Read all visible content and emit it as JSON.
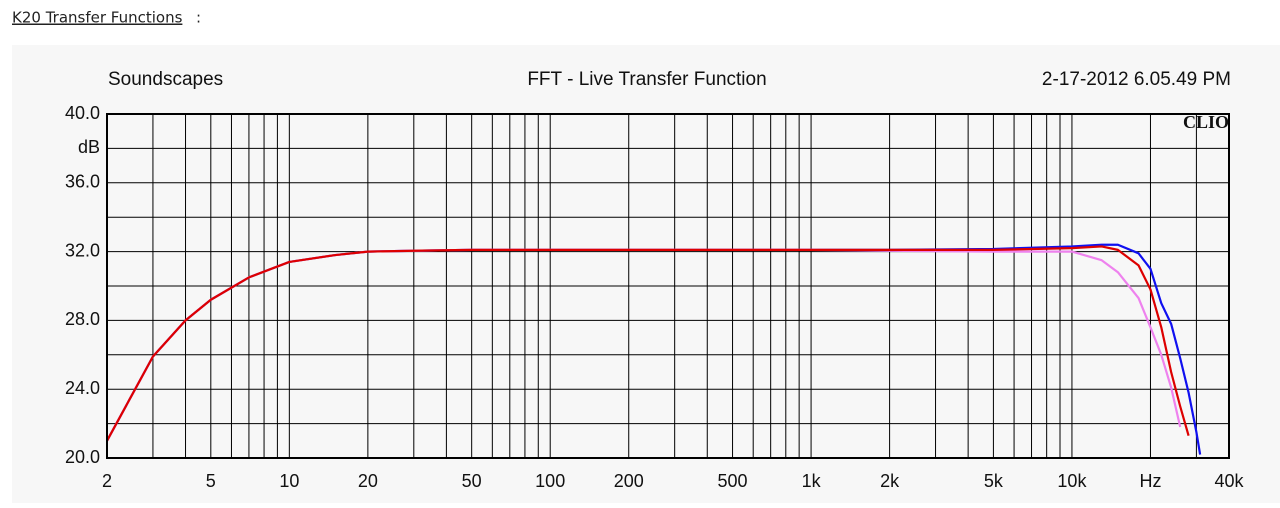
{
  "link": {
    "text": "K20 Transfer Functions",
    "suffix": ":"
  },
  "chart_data": {
    "type": "line",
    "title": "FFT - Live Transfer Function",
    "left_header": "Soundscapes",
    "right_header": "2-17-2012 6.05.49 PM",
    "brand": "CLIO",
    "x_log": true,
    "grid": true,
    "xlim": [
      2,
      40000
    ],
    "ylim": [
      20,
      40
    ],
    "xticks": [
      2,
      {
        "value": 3,
        "label": null
      },
      {
        "value": 4,
        "label": null
      },
      5,
      {
        "value": 6,
        "label": null
      },
      {
        "value": 7,
        "label": null
      },
      {
        "value": 8,
        "label": null
      },
      {
        "value": 9,
        "label": null
      },
      10,
      20,
      {
        "value": 30,
        "label": null
      },
      {
        "value": 40,
        "label": null
      },
      50,
      {
        "value": 60,
        "label": null
      },
      {
        "value": 70,
        "label": null
      },
      {
        "value": 80,
        "label": null
      },
      {
        "value": 90,
        "label": null
      },
      100,
      200,
      {
        "value": 300,
        "label": null
      },
      {
        "value": 400,
        "label": null
      },
      500,
      {
        "value": 600,
        "label": null
      },
      {
        "value": 700,
        "label": null
      },
      {
        "value": 800,
        "label": null
      },
      {
        "value": 900,
        "label": null
      },
      {
        "value": 1000,
        "label": "1k"
      },
      {
        "value": 2000,
        "label": "2k"
      },
      {
        "value": 3000,
        "label": null
      },
      {
        "value": 4000,
        "label": null
      },
      {
        "value": 5000,
        "label": "5k"
      },
      {
        "value": 6000,
        "label": null
      },
      {
        "value": 7000,
        "label": null
      },
      {
        "value": 8000,
        "label": null
      },
      {
        "value": 9000,
        "label": null
      },
      {
        "value": 10000,
        "label": "10k"
      },
      {
        "value": 20000,
        "label": "Hz"
      },
      {
        "value": 30000,
        "label": null
      },
      {
        "value": 40000,
        "label": "40k"
      }
    ],
    "yticks": [
      {
        "value": 20,
        "label": "20.0"
      },
      {
        "value": 22,
        "label": null
      },
      {
        "value": 24,
        "label": "24.0"
      },
      {
        "value": 26,
        "label": null
      },
      {
        "value": 28,
        "label": "28.0"
      },
      {
        "value": 30,
        "label": null
      },
      {
        "value": 32,
        "label": "32.0"
      },
      {
        "value": 34,
        "label": null
      },
      {
        "value": 36,
        "label": "36.0"
      },
      {
        "value": 38,
        "label": "dB"
      },
      {
        "value": 40,
        "label": "40.0"
      }
    ],
    "x": [
      2,
      3,
      4,
      5,
      7,
      10,
      15,
      20,
      30,
      50,
      100,
      200,
      500,
      1000,
      2000,
      5000,
      10000,
      13000,
      15000,
      18000,
      20000,
      22000,
      24000,
      26000,
      28000,
      30000,
      31000
    ],
    "series": [
      {
        "color": "#1010f0",
        "values": [
          21.0,
          25.9,
          28.0,
          29.2,
          30.5,
          31.4,
          31.8,
          32.0,
          32.05,
          32.1,
          32.1,
          32.1,
          32.1,
          32.1,
          32.1,
          32.15,
          32.3,
          32.4,
          32.4,
          31.9,
          31.0,
          29.0,
          27.8,
          25.8,
          23.8,
          21.5,
          20.2
        ]
      },
      {
        "color": "#ee82ee",
        "values": [
          21.0,
          25.9,
          28.0,
          29.2,
          30.5,
          31.4,
          31.8,
          32.0,
          32.05,
          32.1,
          32.1,
          32.1,
          32.1,
          32.1,
          32.05,
          32.0,
          32.0,
          31.5,
          30.8,
          29.3,
          27.6,
          26.0,
          24.1,
          21.8,
          null,
          null,
          null
        ]
      },
      {
        "color": "#dd0000",
        "values": [
          21.0,
          25.9,
          28.0,
          29.2,
          30.5,
          31.4,
          31.8,
          32.0,
          32.05,
          32.1,
          32.1,
          32.1,
          32.1,
          32.1,
          32.1,
          32.1,
          32.2,
          32.3,
          32.1,
          31.2,
          29.8,
          27.6,
          25.0,
          23.0,
          21.3,
          null,
          null
        ]
      }
    ]
  }
}
